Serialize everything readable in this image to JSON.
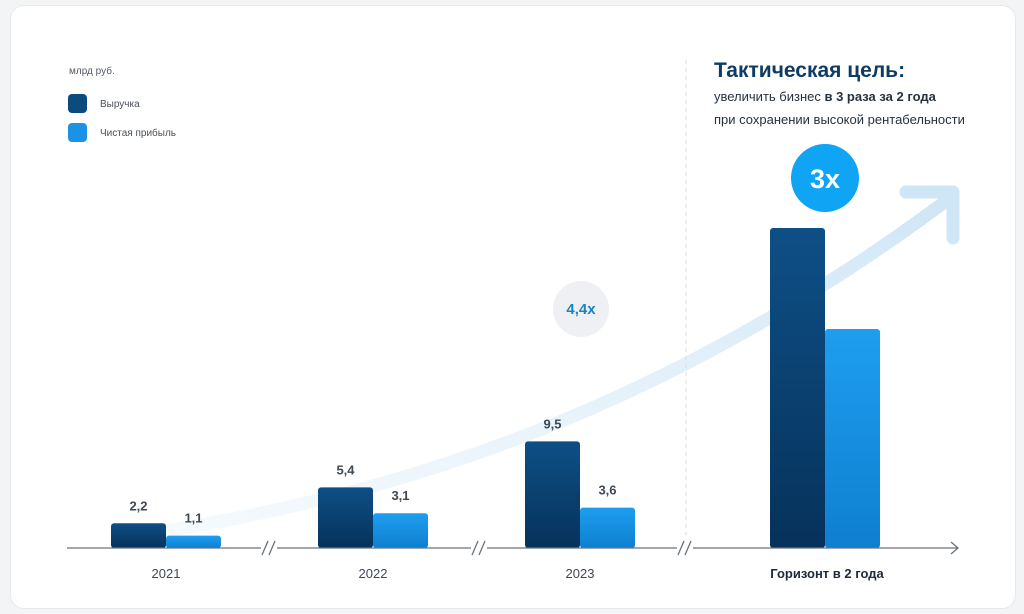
{
  "unit_label": "млрд руб.",
  "legend": [
    {
      "label": "Выручка",
      "color": "#0d4a7e"
    },
    {
      "label": "Чистая прибыль",
      "color": "#1a93e6"
    }
  ],
  "goal": {
    "title": "Тактическая цель:",
    "line1_prefix": "увеличить бизнес ",
    "line1_bold": "в 3 раза за 2 года",
    "line2": "при сохранении высокой рентабельности"
  },
  "multipliers": {
    "growth_2023": "4,4x",
    "target": "3x"
  },
  "chart_data": {
    "type": "bar",
    "categories": [
      "2021",
      "2022",
      "2023",
      "Горизонт в 2 года"
    ],
    "series": [
      {
        "name": "Выручка",
        "values": [
          2.2,
          5.4,
          9.5,
          28.5
        ],
        "labels": [
          "2,2",
          "5,4",
          "9,5",
          ""
        ]
      },
      {
        "name": "Чистая прибыль",
        "values": [
          1.1,
          3.1,
          3.6,
          19.5
        ],
        "labels": [
          "1,1",
          "3,1",
          "3,6",
          ""
        ]
      }
    ],
    "ylim": [
      0,
      30
    ],
    "title": "",
    "xlabel": "",
    "ylabel": "млрд руб."
  }
}
